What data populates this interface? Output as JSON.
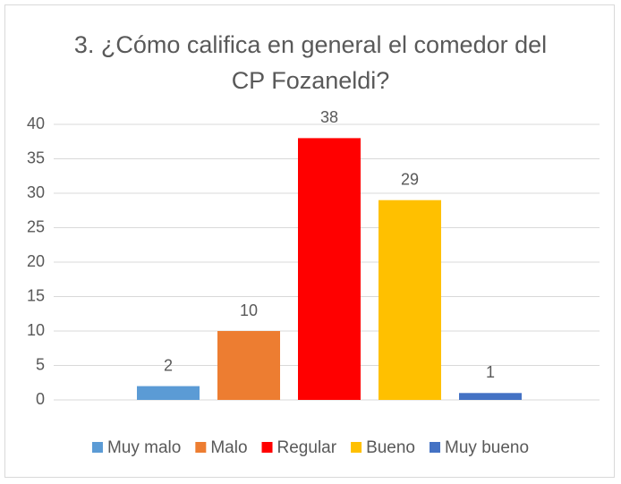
{
  "chart_data": {
    "type": "bar",
    "title": "3. ¿Cómo califica en general el comedor del CP Fozaneldi?",
    "categories": [
      null
    ],
    "series": [
      {
        "name": "Muy malo",
        "color": "#5b9bd5",
        "values": [
          2
        ]
      },
      {
        "name": "Malo",
        "color": "#ed7d31",
        "values": [
          10
        ]
      },
      {
        "name": "Regular",
        "color": "#ff0000",
        "values": [
          38
        ]
      },
      {
        "name": "Bueno",
        "color": "#ffc000",
        "values": [
          29
        ]
      },
      {
        "name": "Muy bueno",
        "color": "#4472c4",
        "values": [
          1
        ]
      }
    ],
    "ylim": [
      0,
      40
    ],
    "yticks": [
      0,
      5,
      10,
      15,
      20,
      25,
      30,
      35,
      40
    ],
    "grid": true,
    "legend": "bottom"
  }
}
